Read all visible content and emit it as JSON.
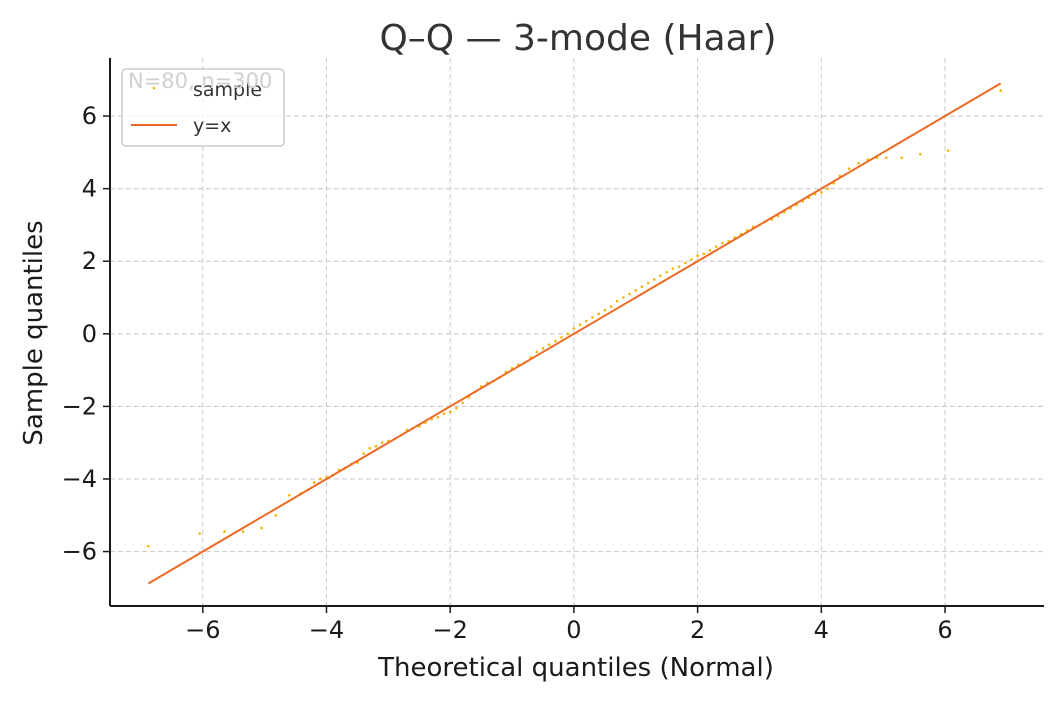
{
  "chart_data": {
    "type": "scatter",
    "title": "Q–Q — 3-mode (Haar)",
    "xlabel": "Theoretical quantiles (Normal)",
    "ylabel": "Sample quantiles",
    "xlim": [
      -7.5,
      7.6
    ],
    "ylim": [
      -7.5,
      7.6
    ],
    "xticks": [
      -6,
      -4,
      -2,
      0,
      2,
      4,
      6
    ],
    "yticks": [
      -6,
      -4,
      -2,
      0,
      2,
      4,
      6
    ],
    "xtick_labels": [
      "−6",
      "−4",
      "−2",
      "0",
      "2",
      "4",
      "6"
    ],
    "ytick_labels": [
      "−6",
      "−4",
      "−2",
      "0",
      "2",
      "4",
      "6"
    ],
    "grid": true,
    "grid_style": "dashed",
    "legend_position": "top-left",
    "annotation": "N=80, n=300",
    "series": [
      {
        "name": "sample",
        "kind": "points",
        "color": "#f5b300",
        "x": [
          -6.88,
          -6.05,
          -5.65,
          -5.35,
          -5.05,
          -4.82,
          -4.6,
          -4.42,
          -4.3,
          -4.2,
          -4.1,
          -4.0,
          -3.9,
          -3.8,
          -3.7,
          -3.6,
          -3.5,
          -3.4,
          -3.3,
          -3.2,
          -3.1,
          -3.0,
          -2.9,
          -2.8,
          -2.7,
          -2.6,
          -2.5,
          -2.4,
          -2.3,
          -2.2,
          -2.1,
          -2.0,
          -1.9,
          -1.8,
          -1.7,
          -1.6,
          -1.5,
          -1.4,
          -1.3,
          -1.2,
          -1.1,
          -1.0,
          -0.9,
          -0.8,
          -0.7,
          -0.6,
          -0.5,
          -0.4,
          -0.3,
          -0.2,
          -0.1,
          0.0,
          0.1,
          0.2,
          0.3,
          0.4,
          0.5,
          0.6,
          0.7,
          0.8,
          0.9,
          1.0,
          1.1,
          1.2,
          1.3,
          1.4,
          1.5,
          1.6,
          1.7,
          1.8,
          1.9,
          2.0,
          2.1,
          2.2,
          2.3,
          2.4,
          2.5,
          2.6,
          2.7,
          2.8,
          2.9,
          3.0,
          3.1,
          3.2,
          3.3,
          3.4,
          3.5,
          3.6,
          3.7,
          3.8,
          3.9,
          4.0,
          4.1,
          4.2,
          4.3,
          4.45,
          4.6,
          4.75,
          4.9,
          5.05,
          5.3,
          5.6,
          6.05,
          6.9
        ],
        "y": [
          -5.85,
          -5.5,
          -5.45,
          -5.45,
          -5.35,
          -5.0,
          -4.45,
          -4.4,
          -4.3,
          -4.1,
          -4.0,
          -3.95,
          -3.9,
          -3.75,
          -3.7,
          -3.6,
          -3.55,
          -3.3,
          -3.15,
          -3.1,
          -3.0,
          -2.95,
          -2.9,
          -2.8,
          -2.65,
          -2.6,
          -2.55,
          -2.45,
          -2.35,
          -2.3,
          -2.2,
          -2.15,
          -2.05,
          -1.9,
          -1.75,
          -1.6,
          -1.45,
          -1.35,
          -1.3,
          -1.2,
          -1.05,
          -0.95,
          -0.85,
          -0.8,
          -0.65,
          -0.5,
          -0.4,
          -0.3,
          -0.2,
          -0.1,
          0.0,
          0.15,
          0.25,
          0.35,
          0.45,
          0.55,
          0.65,
          0.75,
          0.9,
          1.0,
          1.1,
          1.2,
          1.3,
          1.4,
          1.5,
          1.6,
          1.7,
          1.8,
          1.85,
          1.95,
          2.05,
          2.15,
          2.2,
          2.3,
          2.4,
          2.5,
          2.55,
          2.65,
          2.75,
          2.85,
          2.95,
          3.0,
          3.1,
          3.15,
          3.25,
          3.35,
          3.45,
          3.55,
          3.65,
          3.75,
          3.85,
          3.9,
          4.0,
          4.15,
          4.35,
          4.55,
          4.7,
          4.8,
          4.85,
          4.85,
          4.85,
          4.95,
          5.05,
          6.7
        ]
      },
      {
        "name": "y=x",
        "kind": "line",
        "color": "#ee6a24",
        "x": [
          -6.88,
          6.9
        ],
        "y": [
          -6.88,
          6.9
        ]
      }
    ]
  }
}
